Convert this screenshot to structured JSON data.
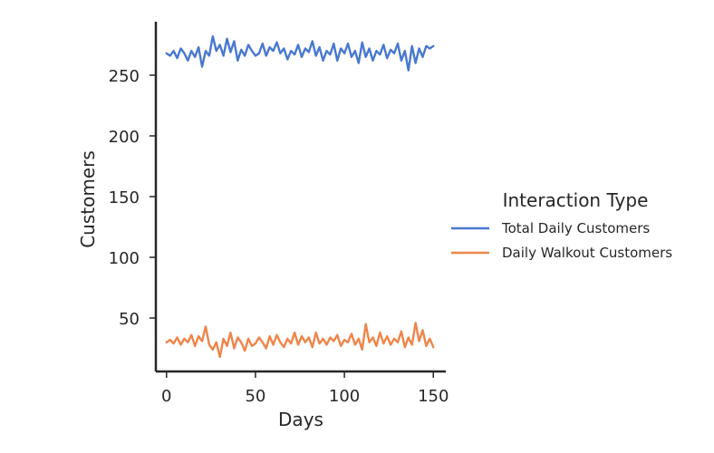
{
  "chart_data": {
    "type": "line",
    "title": "",
    "xlabel": "Days",
    "ylabel": "Customers",
    "xlim": [
      -6,
      157
    ],
    "ylim": [
      6,
      294
    ],
    "xticks": [
      0,
      50,
      100,
      150
    ],
    "yticks": [
      50,
      100,
      150,
      200,
      250
    ],
    "grid": false,
    "legend": {
      "title": "Interaction Type",
      "placement": "right"
    },
    "series": [
      {
        "name": "Total Daily Customers",
        "color": "#4878d0",
        "x": [
          0,
          2,
          4,
          6,
          8,
          10,
          12,
          14,
          16,
          18,
          20,
          22,
          24,
          26,
          28,
          30,
          32,
          34,
          36,
          38,
          40,
          42,
          44,
          46,
          48,
          50,
          52,
          54,
          56,
          58,
          60,
          62,
          64,
          66,
          68,
          70,
          72,
          74,
          76,
          78,
          80,
          82,
          84,
          86,
          88,
          90,
          92,
          94,
          96,
          98,
          100,
          102,
          104,
          106,
          108,
          110,
          112,
          114,
          116,
          118,
          120,
          122,
          124,
          126,
          128,
          130,
          132,
          134,
          136,
          138,
          140,
          142,
          144,
          146,
          148,
          150
        ],
        "values": [
          268,
          266,
          270,
          264,
          272,
          268,
          262,
          270,
          265,
          273,
          257,
          270,
          266,
          282,
          270,
          275,
          266,
          280,
          269,
          278,
          262,
          271,
          266,
          275,
          270,
          266,
          268,
          276,
          266,
          273,
          270,
          277,
          268,
          272,
          263,
          270,
          267,
          275,
          265,
          272,
          269,
          278,
          266,
          273,
          262,
          270,
          267,
          276,
          262,
          272,
          268,
          276,
          265,
          270,
          260,
          277,
          265,
          272,
          262,
          270,
          267,
          275,
          264,
          271,
          268,
          276,
          262,
          270,
          254,
          274,
          260,
          272,
          265,
          274,
          272,
          274
        ]
      },
      {
        "name": "Daily Walkout Customers",
        "color": "#ee854a",
        "x": [
          0,
          2,
          4,
          6,
          8,
          10,
          12,
          14,
          16,
          18,
          20,
          22,
          24,
          26,
          28,
          30,
          32,
          34,
          36,
          38,
          40,
          42,
          44,
          46,
          48,
          50,
          52,
          54,
          56,
          58,
          60,
          62,
          64,
          66,
          68,
          70,
          72,
          74,
          76,
          78,
          80,
          82,
          84,
          86,
          88,
          90,
          92,
          94,
          96,
          98,
          100,
          102,
          104,
          106,
          108,
          110,
          112,
          114,
          116,
          118,
          120,
          122,
          124,
          126,
          128,
          130,
          132,
          134,
          136,
          138,
          140,
          142,
          144,
          146,
          148,
          150
        ],
        "values": [
          30,
          32,
          29,
          34,
          28,
          33,
          30,
          36,
          27,
          35,
          31,
          43,
          28,
          24,
          30,
          18,
          33,
          27,
          38,
          25,
          34,
          30,
          23,
          33,
          27,
          29,
          34,
          30,
          25,
          35,
          28,
          36,
          30,
          26,
          33,
          29,
          38,
          28,
          35,
          30,
          34,
          26,
          38,
          29,
          33,
          28,
          34,
          31,
          36,
          27,
          32,
          30,
          37,
          28,
          33,
          24,
          45,
          30,
          34,
          27,
          38,
          29,
          35,
          28,
          33,
          30,
          39,
          26,
          34,
          28,
          46,
          31,
          40,
          27,
          33,
          26
        ]
      }
    ]
  }
}
